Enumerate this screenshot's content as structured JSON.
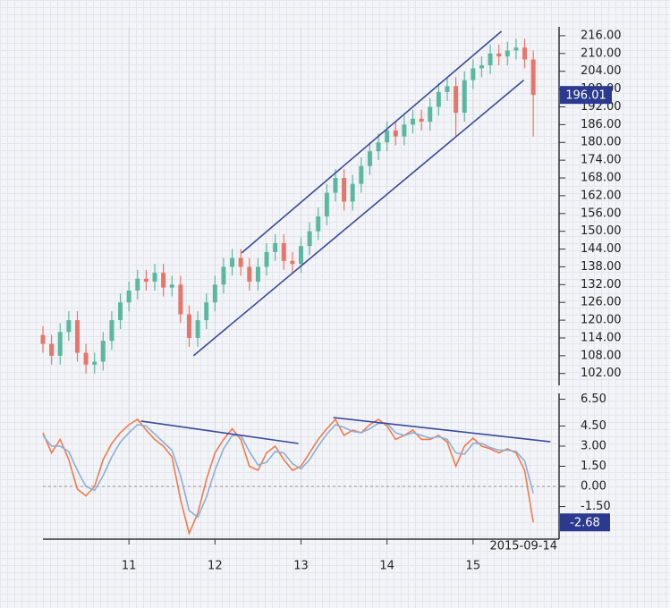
{
  "chart_data": [
    {
      "type": "candlestick",
      "x": [
        2010.0,
        2010.1,
        2010.2,
        2010.3,
        2010.4,
        2010.5,
        2010.6,
        2010.7,
        2010.8,
        2010.9,
        2011.0,
        2011.1,
        2011.2,
        2011.3,
        2011.4,
        2011.5,
        2011.6,
        2011.7,
        2011.8,
        2011.9,
        2012.0,
        2012.1,
        2012.2,
        2012.3,
        2012.4,
        2012.5,
        2012.6,
        2012.7,
        2012.8,
        2012.9,
        2013.0,
        2013.1,
        2013.2,
        2013.3,
        2013.4,
        2013.5,
        2013.6,
        2013.7,
        2013.8,
        2013.9,
        2014.0,
        2014.1,
        2014.2,
        2014.3,
        2014.4,
        2014.5,
        2014.6,
        2014.7,
        2014.8,
        2014.9,
        2015.0,
        2015.1,
        2015.2,
        2015.3,
        2015.4,
        2015.5,
        2015.6,
        2015.7
      ],
      "open": [
        115,
        112,
        108,
        116,
        120,
        109,
        105,
        106,
        113,
        120,
        126,
        130,
        134,
        133,
        136,
        131,
        132,
        122,
        114,
        120,
        126,
        132,
        138,
        141,
        138,
        133,
        138,
        143,
        146,
        140,
        139,
        145,
        150,
        155,
        163,
        168,
        160,
        166,
        172,
        177,
        180,
        184,
        182,
        186,
        188,
        187,
        192,
        197,
        199,
        190,
        201,
        205,
        206,
        210,
        209,
        211,
        212,
        208
      ],
      "high": [
        118,
        115,
        119,
        123,
        123,
        112,
        109,
        116,
        123,
        129,
        133,
        137,
        137,
        139,
        139,
        135,
        135,
        125,
        123,
        129,
        135,
        141,
        144,
        144,
        141,
        141,
        146,
        149,
        149,
        143,
        148,
        153,
        158,
        166,
        171,
        171,
        169,
        175,
        180,
        183,
        187,
        187,
        189,
        191,
        191,
        195,
        200,
        202,
        202,
        204,
        208,
        209,
        213,
        213,
        214,
        215,
        215,
        211
      ],
      "low": [
        109,
        105,
        105,
        113,
        106,
        102,
        102,
        103,
        110,
        117,
        123,
        127,
        130,
        130,
        128,
        128,
        119,
        111,
        111,
        117,
        123,
        129,
        135,
        135,
        130,
        130,
        135,
        140,
        137,
        136,
        136,
        142,
        147,
        152,
        160,
        157,
        157,
        163,
        169,
        174,
        177,
        179,
        179,
        183,
        184,
        184,
        189,
        194,
        182,
        187,
        198,
        202,
        203,
        206,
        206,
        208,
        205,
        182
      ],
      "close": [
        112,
        108,
        116,
        120,
        109,
        105,
        106,
        113,
        120,
        126,
        130,
        134,
        133,
        136,
        131,
        132,
        122,
        114,
        120,
        126,
        132,
        138,
        141,
        138,
        133,
        138,
        143,
        146,
        140,
        139,
        145,
        150,
        155,
        163,
        168,
        160,
        166,
        172,
        177,
        180,
        184,
        182,
        186,
        188,
        187,
        192,
        197,
        199,
        190,
        201,
        205,
        206,
        210,
        209,
        211,
        212,
        208,
        196.01
      ],
      "up_color": "#5bb8a0",
      "down_color": "#e8756a",
      "xlim": [
        2010,
        2016
      ],
      "ylim": [
        98,
        219
      ],
      "yticks": [
        {
          "value": 216,
          "label": "216.00"
        },
        {
          "value": 210,
          "label": "210.00"
        },
        {
          "value": 204,
          "label": "204.00"
        },
        {
          "value": 198,
          "label": "198.00"
        },
        {
          "value": 192,
          "label": "192.00"
        },
        {
          "value": 186,
          "label": "186.00"
        },
        {
          "value": 180,
          "label": "180.00"
        },
        {
          "value": 174,
          "label": "174.00"
        },
        {
          "value": 168,
          "label": "168.00"
        },
        {
          "value": 162,
          "label": "162.00"
        },
        {
          "value": 156,
          "label": "156.00"
        },
        {
          "value": 150,
          "label": "150.00"
        },
        {
          "value": 144,
          "label": "144.00"
        },
        {
          "value": 138,
          "label": "138.00"
        },
        {
          "value": 132,
          "label": "132.00"
        },
        {
          "value": 126,
          "label": "126.00"
        },
        {
          "value": 120,
          "label": "120.00"
        },
        {
          "value": 114,
          "label": "114.00"
        },
        {
          "value": 108,
          "label": "108.00"
        },
        {
          "value": 102,
          "label": "102.00"
        }
      ],
      "trendlines": [
        {
          "x": [
            2012.31,
            2015.33
          ],
          "y": [
            142.7,
            217.5
          ],
          "color": "#3a4a9a"
        },
        {
          "x": [
            2011.75,
            2015.59
          ],
          "y": [
            108,
            201
          ],
          "color": "#3a4a9a"
        }
      ]
    },
    {
      "type": "line",
      "x": [
        2010.0,
        2010.1,
        2010.2,
        2010.3,
        2010.4,
        2010.5,
        2010.6,
        2010.7,
        2010.8,
        2010.9,
        2011.0,
        2011.1,
        2011.2,
        2011.3,
        2011.4,
        2011.5,
        2011.6,
        2011.7,
        2011.8,
        2011.9,
        2012.0,
        2012.1,
        2012.2,
        2012.3,
        2012.4,
        2012.5,
        2012.6,
        2012.7,
        2012.8,
        2012.9,
        2013.0,
        2013.1,
        2013.2,
        2013.3,
        2013.4,
        2013.5,
        2013.6,
        2013.7,
        2013.8,
        2013.9,
        2014.0,
        2014.1,
        2014.2,
        2014.3,
        2014.4,
        2014.5,
        2014.6,
        2014.7,
        2014.8,
        2014.9,
        2015.0,
        2015.1,
        2015.2,
        2015.3,
        2015.4,
        2015.5,
        2015.6,
        2015.7
      ],
      "series": [
        {
          "color": "#f07a50",
          "values": [
            4.0,
            2.5,
            3.5,
            2.0,
            -0.2,
            -0.7,
            0.0,
            2.0,
            3.2,
            4.0,
            4.6,
            5.0,
            4.2,
            3.5,
            3.0,
            2.2,
            -1.0,
            -3.5,
            -2.0,
            0.5,
            2.5,
            3.5,
            4.3,
            3.5,
            1.5,
            1.2,
            2.5,
            3.0,
            2.0,
            1.2,
            1.5,
            2.5,
            3.5,
            4.3,
            5.0,
            3.8,
            4.2,
            4.0,
            4.6,
            5.0,
            4.5,
            3.5,
            3.8,
            4.2,
            3.5,
            3.5,
            3.8,
            3.3,
            1.5,
            3.0,
            3.6,
            3.0,
            2.8,
            2.5,
            2.8,
            2.5,
            1.2,
            -2.68
          ]
        },
        {
          "color": "#8ab0d8",
          "values": [
            3.8,
            3.0,
            3.0,
            2.6,
            1.2,
            0.0,
            -0.3,
            0.8,
            2.2,
            3.3,
            4.0,
            4.6,
            4.5,
            3.9,
            3.3,
            2.7,
            0.8,
            -1.8,
            -2.3,
            -0.8,
            1.2,
            2.8,
            3.8,
            3.8,
            2.6,
            1.6,
            1.8,
            2.6,
            2.5,
            1.7,
            1.3,
            2.0,
            3.0,
            3.9,
            4.6,
            4.4,
            4.1,
            4.0,
            4.3,
            4.7,
            4.7,
            4.0,
            3.8,
            4.0,
            3.8,
            3.6,
            3.7,
            3.5,
            2.5,
            2.4,
            3.2,
            3.2,
            2.9,
            2.7,
            2.7,
            2.6,
            1.9,
            -0.5
          ]
        }
      ],
      "xlim": [
        2010,
        2016
      ],
      "ylim": [
        -3.93,
        6.93
      ],
      "yticks": [
        {
          "value": 6.5,
          "label": "6.50"
        },
        {
          "value": 4.5,
          "label": "4.50"
        },
        {
          "value": 3,
          "label": "3.00"
        },
        {
          "value": 1.5,
          "label": "1.50"
        },
        {
          "value": 0,
          "label": "0.00"
        },
        {
          "value": -1.5,
          "label": "-1.50"
        }
      ],
      "xticks": [
        {
          "value": 2011,
          "label": "11"
        },
        {
          "value": 2012,
          "label": "12"
        },
        {
          "value": 2013,
          "label": "13"
        },
        {
          "value": 2014,
          "label": "14"
        },
        {
          "value": 2015,
          "label": "15"
        }
      ],
      "last_date": "2015-09-14",
      "trendlines": [
        {
          "x": [
            2011.14,
            2012.97
          ],
          "y": [
            4.87,
            3.2
          ],
          "color": "#3a4a9a"
        },
        {
          "x": [
            2013.375,
            2015.9
          ],
          "y": [
            5.13,
            3.33
          ],
          "color": "#3a4a9a"
        }
      ]
    }
  ]
}
